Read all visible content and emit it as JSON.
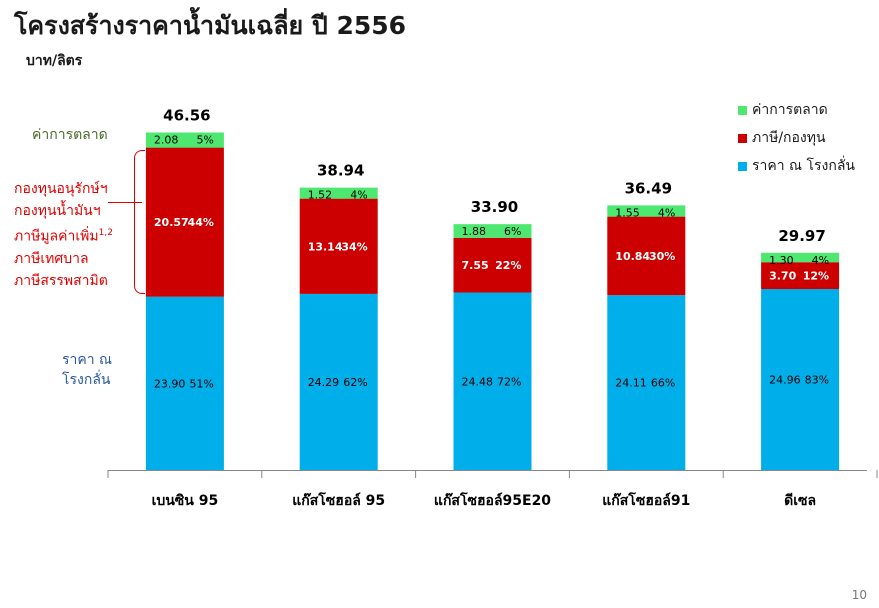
{
  "title": "โครงสร้างราคาน้ำมันเฉลี่ย ปี 2556",
  "unit": "บาท/ลิตร",
  "page_number": "10",
  "side_labels": {
    "market_margin": "ค่าการตลาด",
    "tax_lines": [
      "กองทุนอนุรักษ์ฯ",
      "กองทุนน้ำมันฯ",
      "ภาษีมูลค่าเพิ่ม",
      "ภาษีเทศบาล",
      "ภาษีสรรพสามิต"
    ],
    "tax_superscript": "1,2",
    "refinery": [
      "ราคา ณ",
      "โรงกลั่น"
    ]
  },
  "legend": [
    {
      "name": "ค่าการตลาด",
      "color": "#4ee870"
    },
    {
      "name": "ภาษี/กองทุน",
      "color": "#cc0000"
    },
    {
      "name": "ราคา ณ โรงกลั่น",
      "color": "#00aeea"
    }
  ],
  "chart_data": {
    "type": "bar",
    "stacked": true,
    "categories": [
      "เบนซิน 95",
      "แก๊สโซฮอล์ 95",
      "แก๊สโซฮอล์95E20",
      "แก๊สโซฮอล์91",
      "ดีเซล"
    ],
    "totals": [
      "46.56",
      "38.94",
      "33.90",
      "36.49",
      "29.97"
    ],
    "series": [
      {
        "name": "ราคา ณ โรงกลั่น",
        "color": "#00aeea",
        "values": [
          23.9,
          24.29,
          24.48,
          24.11,
          24.96
        ],
        "labels": [
          "23.90",
          "24.29",
          "24.48",
          "24.11",
          "24.96"
        ],
        "percents": [
          "51%",
          "62%",
          "72%",
          "66%",
          "83%"
        ]
      },
      {
        "name": "ภาษี/กองทุน",
        "color": "#cc0000",
        "values": [
          20.57,
          13.14,
          7.55,
          10.84,
          3.7
        ],
        "labels": [
          "20.57",
          "13.14",
          "7.55",
          "10.84",
          "3.70"
        ],
        "percents": [
          "44%",
          "34%",
          "22%",
          "30%",
          "12%"
        ]
      },
      {
        "name": "ค่าการตลาด",
        "color": "#4ee870",
        "values": [
          2.08,
          1.52,
          1.88,
          1.55,
          1.3
        ],
        "labels": [
          "2.08",
          "1.52",
          "1.88",
          "1.55",
          "1.30"
        ],
        "percents": [
          "5%",
          "4%",
          "6%",
          "4%",
          "4%"
        ]
      }
    ],
    "ylim": [
      0,
      50
    ]
  }
}
